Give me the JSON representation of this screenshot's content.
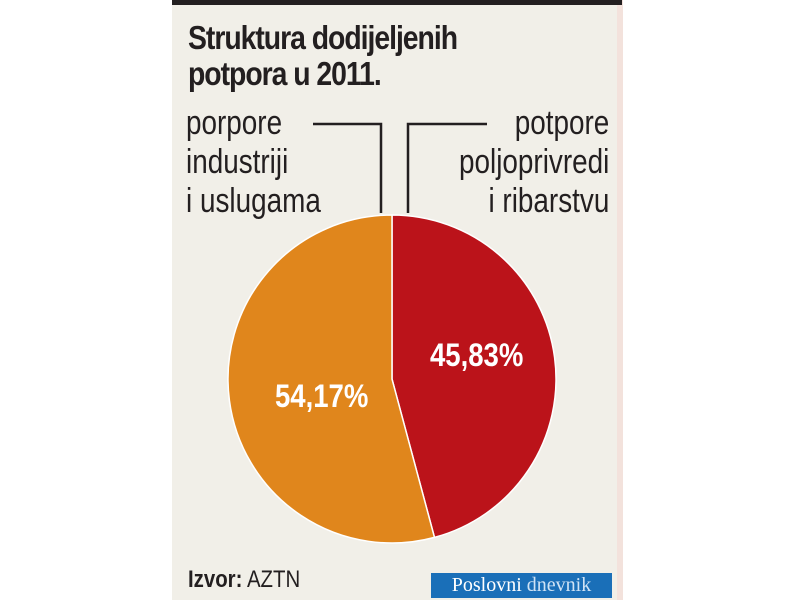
{
  "title": {
    "line1": "Struktura dodijeljenih",
    "line2": "potpora u 2011."
  },
  "labels": {
    "left": [
      "porpore",
      "industriji",
      "i uslugama"
    ],
    "right": [
      "potpore",
      "poljoprivredi",
      "i ribarstvu"
    ]
  },
  "colors": {
    "industry": "#e0861c",
    "agriculture": "#bb131a",
    "background": "#f1efe8",
    "logo": "#1a6fb8"
  },
  "footer": {
    "source_label": "Izvor:",
    "source_value": "AZTN",
    "logo_part1": "Poslovni",
    "logo_part2": "dnevnik"
  },
  "chart_data": {
    "type": "pie",
    "title": "Struktura dodijeljenih potpora u 2011.",
    "categories": [
      "porpore industriji i uslugama",
      "potpore poljoprivredi i ribarstvu"
    ],
    "values": [
      54.17,
      45.83
    ],
    "value_labels": [
      "54,17%",
      "45,83%"
    ],
    "colors": [
      "#e0861c",
      "#bb131a"
    ],
    "source": "Izvor: AZTN"
  }
}
